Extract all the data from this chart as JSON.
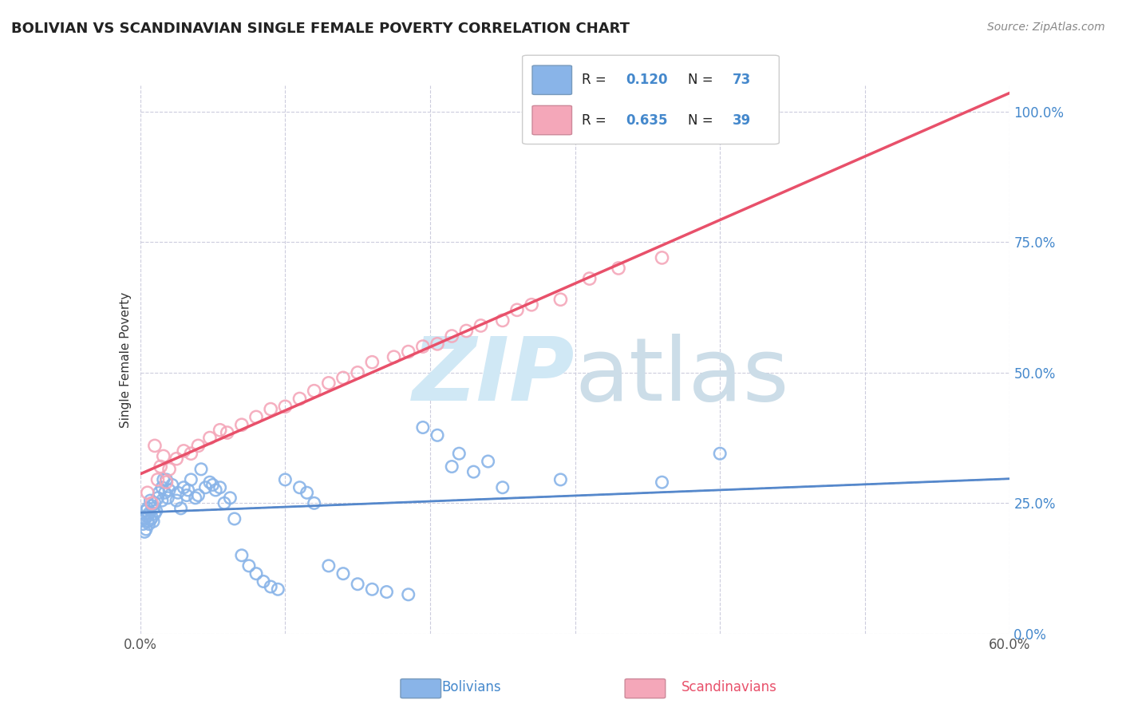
{
  "title": "BOLIVIAN VS SCANDINAVIAN SINGLE FEMALE POVERTY CORRELATION CHART",
  "source": "Source: ZipAtlas.com",
  "xlabel_bolivians": "Bolivians",
  "xlabel_scandinavians": "Scandinavians",
  "ylabel": "Single Female Poverty",
  "xlim": [
    0.0,
    0.6
  ],
  "ylim": [
    0.0,
    1.05
  ],
  "R_bolivian": 0.12,
  "N_bolivian": 73,
  "R_scandinavian": 0.635,
  "N_scandinavian": 39,
  "color_bolivian": "#89b4e8",
  "color_scandinavian": "#f4a7b9",
  "trend_blue": "#5588cc",
  "trend_pink": "#e8506a",
  "trend_dashed": "#aaaaaa",
  "background": "#ffffff",
  "watermark_color": "#d0e8f5",
  "bolivian_x": [
    0.002,
    0.003,
    0.003,
    0.004,
    0.004,
    0.005,
    0.005,
    0.005,
    0.006,
    0.006,
    0.007,
    0.007,
    0.008,
    0.008,
    0.009,
    0.009,
    0.01,
    0.01,
    0.011,
    0.012,
    0.013,
    0.015,
    0.015,
    0.016,
    0.017,
    0.018,
    0.019,
    0.02,
    0.022,
    0.025,
    0.026,
    0.028,
    0.03,
    0.032,
    0.033,
    0.035,
    0.038,
    0.04,
    0.042,
    0.045,
    0.048,
    0.05,
    0.052,
    0.055,
    0.058,
    0.062,
    0.065,
    0.07,
    0.075,
    0.08,
    0.085,
    0.09,
    0.095,
    0.1,
    0.11,
    0.115,
    0.12,
    0.13,
    0.14,
    0.15,
    0.16,
    0.17,
    0.185,
    0.195,
    0.205,
    0.215,
    0.22,
    0.23,
    0.24,
    0.25,
    0.29,
    0.36,
    0.4
  ],
  "bolivian_y": [
    0.21,
    0.195,
    0.22,
    0.2,
    0.235,
    0.215,
    0.225,
    0.24,
    0.21,
    0.23,
    0.218,
    0.255,
    0.222,
    0.245,
    0.215,
    0.24,
    0.23,
    0.25,
    0.235,
    0.26,
    0.27,
    0.28,
    0.255,
    0.295,
    0.27,
    0.295,
    0.26,
    0.275,
    0.285,
    0.255,
    0.27,
    0.24,
    0.28,
    0.265,
    0.275,
    0.295,
    0.26,
    0.265,
    0.315,
    0.28,
    0.29,
    0.285,
    0.275,
    0.28,
    0.25,
    0.26,
    0.22,
    0.15,
    0.13,
    0.115,
    0.1,
    0.09,
    0.085,
    0.295,
    0.28,
    0.27,
    0.25,
    0.13,
    0.115,
    0.095,
    0.085,
    0.08,
    0.075,
    0.395,
    0.38,
    0.32,
    0.345,
    0.31,
    0.33,
    0.28,
    0.295,
    0.29,
    0.345
  ],
  "scandinavian_x": [
    0.005,
    0.008,
    0.01,
    0.012,
    0.014,
    0.016,
    0.018,
    0.02,
    0.025,
    0.03,
    0.035,
    0.04,
    0.048,
    0.055,
    0.06,
    0.07,
    0.08,
    0.09,
    0.1,
    0.11,
    0.12,
    0.13,
    0.14,
    0.15,
    0.16,
    0.175,
    0.185,
    0.195,
    0.205,
    0.215,
    0.225,
    0.235,
    0.25,
    0.26,
    0.27,
    0.29,
    0.31,
    0.33,
    0.36
  ],
  "scandinavian_y": [
    0.27,
    0.25,
    0.36,
    0.295,
    0.32,
    0.34,
    0.29,
    0.315,
    0.335,
    0.35,
    0.345,
    0.36,
    0.375,
    0.39,
    0.385,
    0.4,
    0.415,
    0.43,
    0.435,
    0.45,
    0.465,
    0.48,
    0.49,
    0.5,
    0.52,
    0.53,
    0.54,
    0.55,
    0.555,
    0.57,
    0.58,
    0.59,
    0.6,
    0.62,
    0.63,
    0.64,
    0.68,
    0.7,
    0.72
  ]
}
